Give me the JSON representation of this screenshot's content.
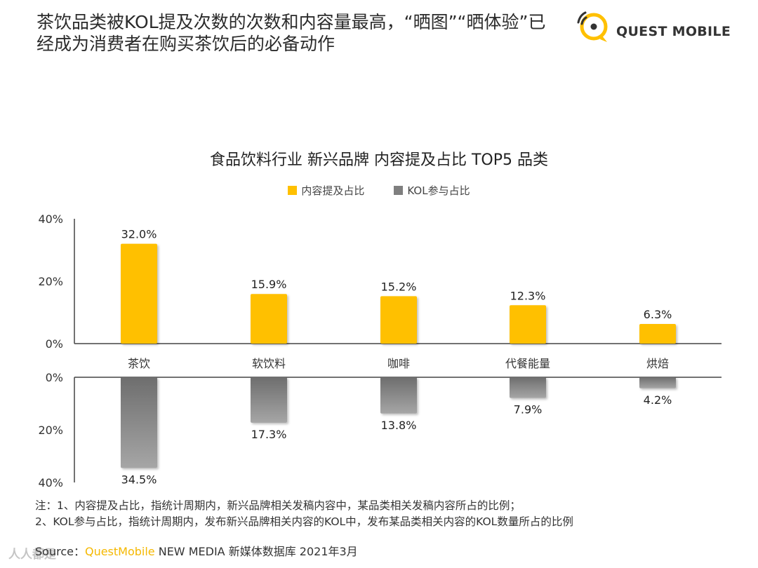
{
  "headline": {
    "line1": "茶饮品类被KOL提及次数的次数和内容量最高，“晒图”“晒体验”已",
    "line2": "经成为消费者在购买茶饮后的必备动作"
  },
  "logo": {
    "text": "QUEST MOBILE"
  },
  "chart_data": {
    "type": "bar",
    "title": "食品饮料行业 新兴品牌 内容提及占比 TOP5 品类",
    "categories": [
      "茶饮",
      "软饮料",
      "咖啡",
      "代餐能量",
      "烘焙"
    ],
    "series": [
      {
        "name": "内容提及占比",
        "color": "#ffc000",
        "values": [
          32.0,
          15.9,
          15.2,
          12.3,
          6.3
        ],
        "labels": [
          "32.0%",
          "15.9%",
          "15.2%",
          "12.3%",
          "6.3%"
        ]
      },
      {
        "name": "KOL参与占比",
        "color": "#7f7f7f",
        "values": [
          34.5,
          17.3,
          13.8,
          7.9,
          4.2
        ],
        "labels": [
          "34.5%",
          "17.3%",
          "13.8%",
          "7.9%",
          "4.2%"
        ]
      }
    ],
    "upper_axis": {
      "ylim": [
        0,
        40
      ],
      "ticks": [
        "40%",
        "20%",
        "0%"
      ]
    },
    "lower_axis": {
      "ylim": [
        0,
        40
      ],
      "ticks": [
        "0%",
        "20%",
        "40%"
      ]
    },
    "legend_position": "top-center"
  },
  "notes": {
    "line1": "注：1、内容提及占比，指统计周期内，新兴品牌相关发稿内容中，某品类相关发稿内容所占的比例；",
    "line2": "2、KOL参与占比，指统计周期内，发布新兴品牌相关内容的KOL中，发布某品类相关内容的KOL数量所占的比例"
  },
  "source": {
    "prefix": "Source：",
    "brand": "QuestMobile",
    "rest": " NEW MEDIA 新媒体数据库 2021年3月"
  },
  "watermark": {
    "text": "人人都是"
  }
}
